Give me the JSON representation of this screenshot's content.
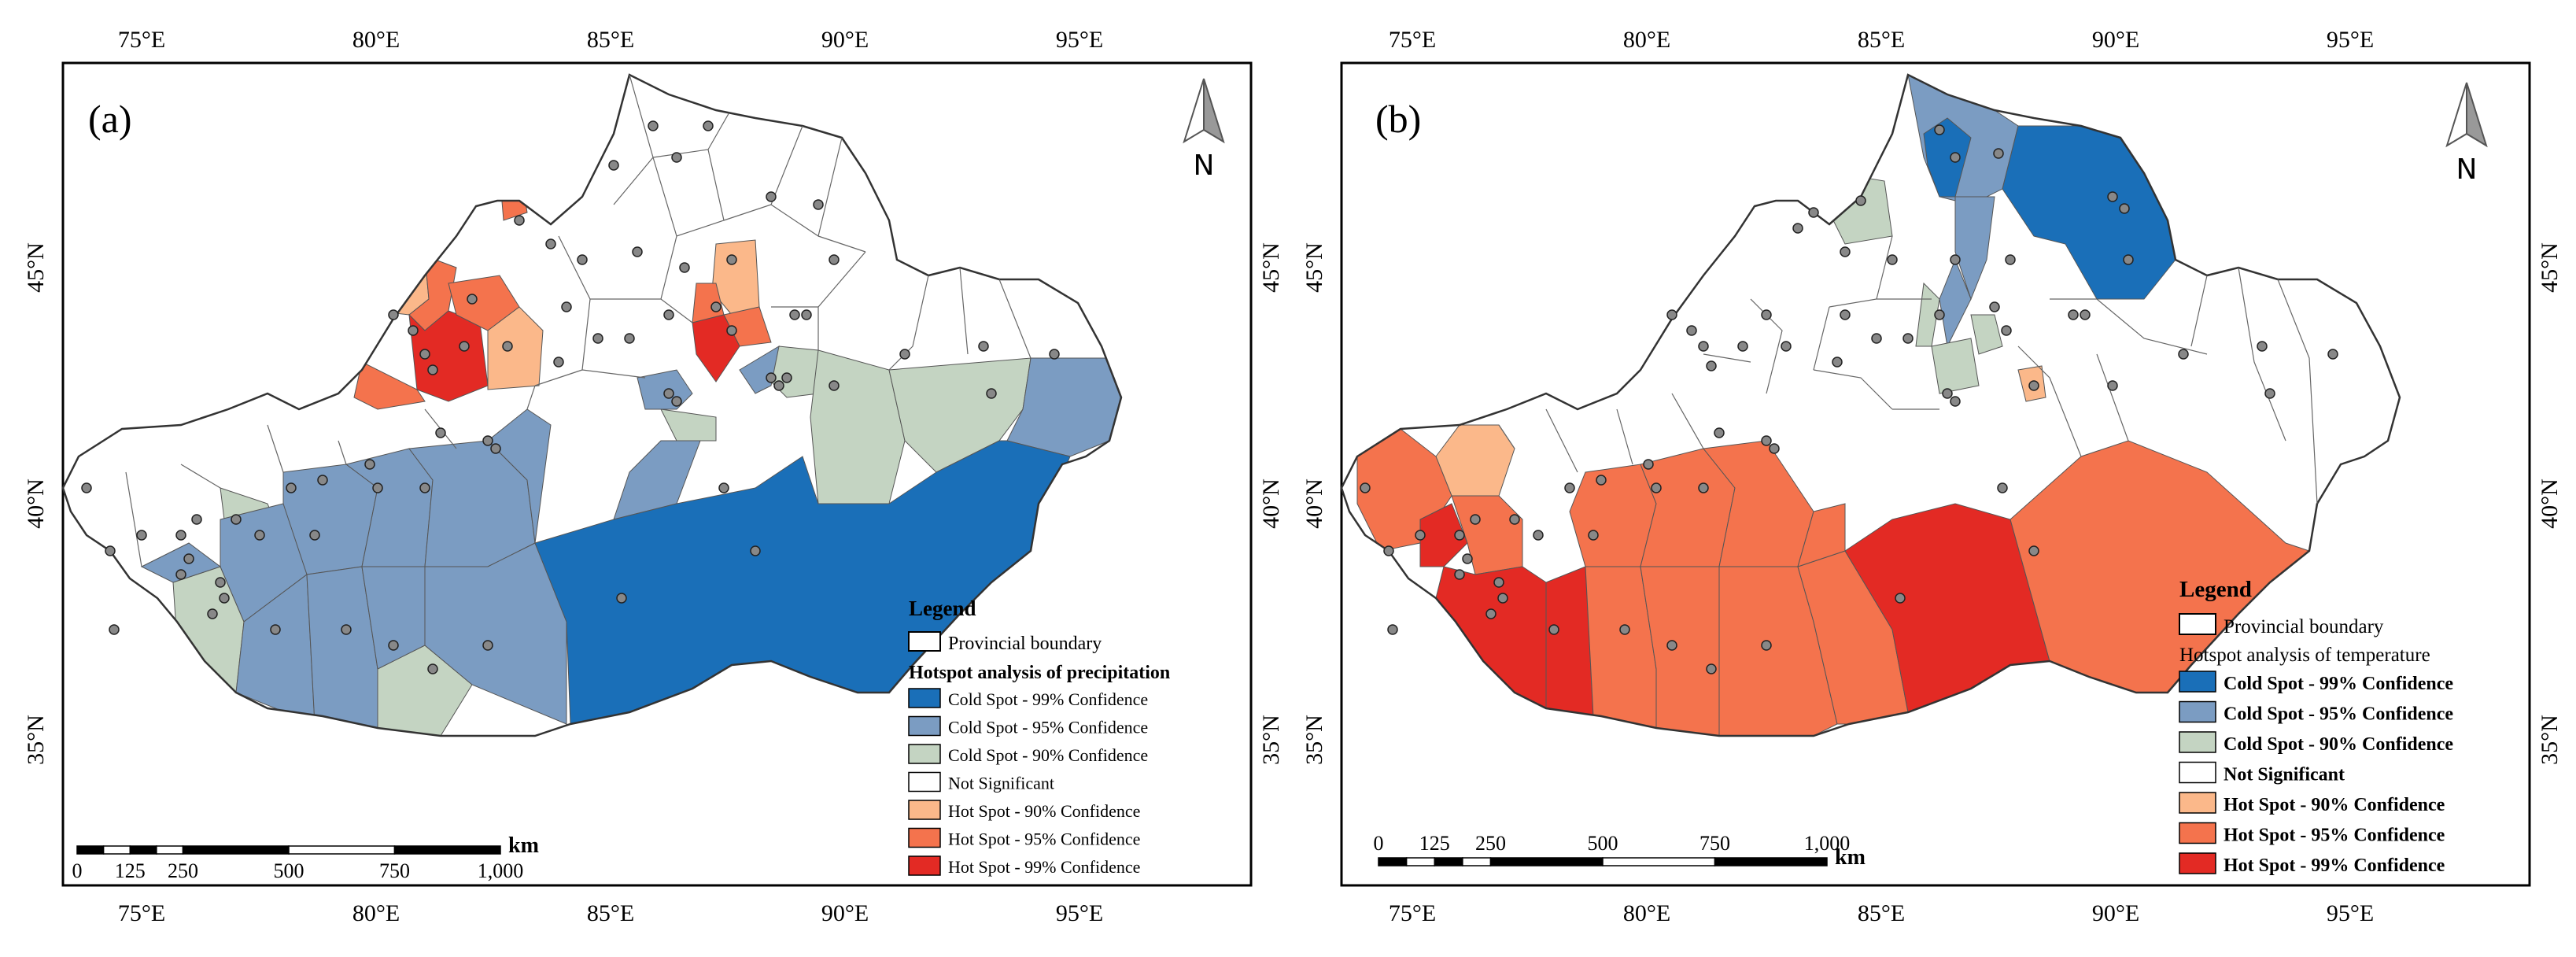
{
  "colors": {
    "cold99": "#1a6fb8",
    "cold95": "#7b9cc2",
    "cold90": "#c4d4c2",
    "ns": "#ffffff",
    "hot90": "#fbb88a",
    "hot95": "#f4734d",
    "hot99": "#e32a24",
    "boundary": "#000000"
  },
  "axes": {
    "lon_ticks": [
      "75°E",
      "80°E",
      "85°E",
      "90°E",
      "95°E"
    ],
    "lat_ticks": [
      "45°N",
      "40°N",
      "35°N"
    ]
  },
  "north_arrow": {
    "label": "N"
  },
  "panels": [
    {
      "label": "(a)",
      "legend": {
        "title": "Legend",
        "boundary_label": "Provincial boundary",
        "section_title": "Hotspot analysis of precipitation",
        "items": [
          {
            "key": "cold99",
            "label": "Cold Spot - 99% Confidence"
          },
          {
            "key": "cold95",
            "label": "Cold Spot - 95% Confidence"
          },
          {
            "key": "cold90",
            "label": "Cold Spot - 90% Confidence"
          },
          {
            "key": "ns",
            "label": "Not Significant"
          },
          {
            "key": "hot90",
            "label": "Hot Spot - 90% Confidence"
          },
          {
            "key": "hot95",
            "label": "Hot Spot - 95% Confidence"
          },
          {
            "key": "hot99",
            "label": "Hot Spot - 99% Confidence"
          }
        ]
      },
      "scale_bar": {
        "unit": "km",
        "labels": [
          "0",
          "125",
          "250",
          "500",
          "750",
          "1,000"
        ]
      }
    },
    {
      "label": "(b)",
      "legend": {
        "title": "Legend",
        "boundary_label": "Provincial boundary",
        "section_title": "Hotspot analysis of temperature",
        "items": [
          {
            "key": "cold99",
            "label": "Cold Spot - 99% Confidence"
          },
          {
            "key": "cold95",
            "label": "Cold Spot - 95% Confidence"
          },
          {
            "key": "cold90",
            "label": "Cold Spot - 90% Confidence"
          },
          {
            "key": "ns",
            "label": "Not Significant"
          },
          {
            "key": "hot90",
            "label": "Hot Spot - 90% Confidence"
          },
          {
            "key": "hot95",
            "label": "Hot Spot - 95% Confidence"
          },
          {
            "key": "hot99",
            "label": "Hot Spot - 99% Confidence"
          }
        ]
      },
      "scale_bar": {
        "unit": "km",
        "labels": [
          "0",
          "125",
          "250",
          "500",
          "750",
          "1,000"
        ]
      }
    }
  ]
}
